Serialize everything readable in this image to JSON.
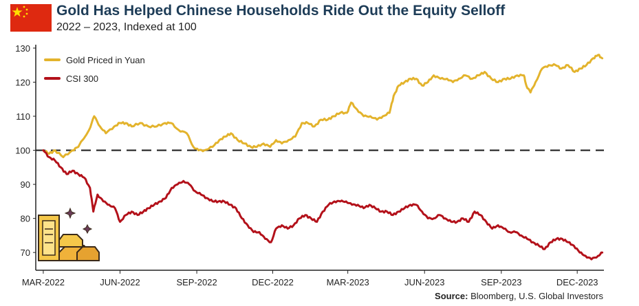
{
  "header": {
    "title": "Gold Has Helped Chinese Households Ride Out the Equity Selloff",
    "subtitle": "2022 – 2023, Indexed at 100"
  },
  "footer": {
    "source_label": "Source:",
    "source_text": "Bloomberg, U.S. Global Investors"
  },
  "colors": {
    "gold": "#e3b32c",
    "csi": "#b3111a",
    "flag_red": "#de2910",
    "flag_star": "#ffde00",
    "title": "#1d3c57"
  },
  "icons": [
    "china-flag-icon",
    "gold-bars-icon"
  ],
  "chart_data": {
    "type": "line",
    "xlabel": "",
    "ylabel": "",
    "ylim": [
      66,
      131
    ],
    "yticks": [
      70,
      80,
      90,
      100,
      110,
      120,
      130
    ],
    "xticks": [
      "MAR-2022",
      "JUN-2022",
      "SEP-2022",
      "DEC-2022",
      "MAR-2023",
      "JUN-2023",
      "SEP-2023",
      "DEC-2023"
    ],
    "reference_line": 100,
    "legend": "top-left",
    "grid": false,
    "series": [
      {
        "name": "Gold Priced in Yuan",
        "points": [
          [
            "2022-03-01",
            100
          ],
          [
            "2022-03-08",
            99
          ],
          [
            "2022-03-15",
            100
          ],
          [
            "2022-03-25",
            98
          ],
          [
            "2022-04-05",
            100
          ],
          [
            "2022-04-12",
            101
          ],
          [
            "2022-04-25",
            106
          ],
          [
            "2022-05-01",
            110
          ],
          [
            "2022-05-08",
            107
          ],
          [
            "2022-05-15",
            105
          ],
          [
            "2022-05-25",
            107
          ],
          [
            "2022-06-01",
            108
          ],
          [
            "2022-06-08",
            108
          ],
          [
            "2022-06-15",
            107
          ],
          [
            "2022-06-25",
            108
          ],
          [
            "2022-07-05",
            107
          ],
          [
            "2022-07-15",
            107
          ],
          [
            "2022-07-25",
            108
          ],
          [
            "2022-08-01",
            108
          ],
          [
            "2022-08-10",
            106
          ],
          [
            "2022-08-20",
            105
          ],
          [
            "2022-08-28",
            101
          ],
          [
            "2022-09-03",
            100
          ],
          [
            "2022-09-10",
            100
          ],
          [
            "2022-09-20",
            101
          ],
          [
            "2022-09-28",
            103
          ],
          [
            "2022-10-05",
            104
          ],
          [
            "2022-10-12",
            105
          ],
          [
            "2022-10-20",
            103
          ],
          [
            "2022-10-28",
            102
          ],
          [
            "2022-11-05",
            101
          ],
          [
            "2022-11-12",
            101
          ],
          [
            "2022-11-20",
            102
          ],
          [
            "2022-11-28",
            101
          ],
          [
            "2022-12-05",
            103
          ],
          [
            "2022-12-12",
            102
          ],
          [
            "2022-12-20",
            103
          ],
          [
            "2022-12-28",
            104
          ],
          [
            "2023-01-05",
            108
          ],
          [
            "2023-01-12",
            108
          ],
          [
            "2023-01-20",
            107
          ],
          [
            "2023-01-28",
            109
          ],
          [
            "2023-02-05",
            109
          ],
          [
            "2023-02-12",
            110
          ],
          [
            "2023-02-20",
            111
          ],
          [
            "2023-02-28",
            111
          ],
          [
            "2023-03-05",
            114
          ],
          [
            "2023-03-12",
            112
          ],
          [
            "2023-03-20",
            110
          ],
          [
            "2023-03-28",
            110
          ],
          [
            "2023-04-05",
            109
          ],
          [
            "2023-04-12",
            110
          ],
          [
            "2023-04-20",
            111
          ],
          [
            "2023-04-25",
            116
          ],
          [
            "2023-05-01",
            119
          ],
          [
            "2023-05-08",
            120
          ],
          [
            "2023-05-15",
            121
          ],
          [
            "2023-05-22",
            121
          ],
          [
            "2023-05-29",
            119
          ],
          [
            "2023-06-05",
            120
          ],
          [
            "2023-06-12",
            122
          ],
          [
            "2023-06-20",
            121
          ],
          [
            "2023-06-28",
            121
          ],
          [
            "2023-07-05",
            120
          ],
          [
            "2023-07-12",
            121
          ],
          [
            "2023-07-20",
            122
          ],
          [
            "2023-07-28",
            121
          ],
          [
            "2023-08-05",
            122
          ],
          [
            "2023-08-12",
            123
          ],
          [
            "2023-08-20",
            121
          ],
          [
            "2023-08-28",
            120
          ],
          [
            "2023-09-05",
            121
          ],
          [
            "2023-09-12",
            121
          ],
          [
            "2023-09-20",
            122
          ],
          [
            "2023-09-28",
            122
          ],
          [
            "2023-10-01",
            119
          ],
          [
            "2023-10-06",
            117
          ],
          [
            "2023-10-12",
            120
          ],
          [
            "2023-10-20",
            124
          ],
          [
            "2023-10-28",
            125
          ],
          [
            "2023-11-05",
            125
          ],
          [
            "2023-11-12",
            124
          ],
          [
            "2023-11-20",
            125
          ],
          [
            "2023-11-28",
            123
          ],
          [
            "2023-12-05",
            124
          ],
          [
            "2023-12-12",
            125
          ],
          [
            "2023-12-20",
            127
          ],
          [
            "2023-12-26",
            128
          ],
          [
            "2023-12-31",
            127
          ]
        ]
      },
      {
        "name": "CSI 300",
        "points": [
          [
            "2022-03-01",
            100
          ],
          [
            "2022-03-08",
            98
          ],
          [
            "2022-03-15",
            97
          ],
          [
            "2022-03-22",
            95
          ],
          [
            "2022-03-29",
            93
          ],
          [
            "2022-04-05",
            94
          ],
          [
            "2022-04-12",
            93
          ],
          [
            "2022-04-19",
            92
          ],
          [
            "2022-04-26",
            89
          ],
          [
            "2022-04-30",
            82
          ],
          [
            "2022-05-05",
            87
          ],
          [
            "2022-05-12",
            85
          ],
          [
            "2022-05-19",
            84
          ],
          [
            "2022-05-26",
            83
          ],
          [
            "2022-06-01",
            79
          ],
          [
            "2022-06-08",
            81
          ],
          [
            "2022-06-15",
            82
          ],
          [
            "2022-06-22",
            81
          ],
          [
            "2022-06-29",
            82
          ],
          [
            "2022-07-05",
            83
          ],
          [
            "2022-07-12",
            84
          ],
          [
            "2022-07-19",
            85
          ],
          [
            "2022-07-26",
            86
          ],
          [
            "2022-08-02",
            89
          ],
          [
            "2022-08-09",
            90
          ],
          [
            "2022-08-16",
            91
          ],
          [
            "2022-08-23",
            90
          ],
          [
            "2022-08-30",
            88
          ],
          [
            "2022-09-06",
            87
          ],
          [
            "2022-09-13",
            86
          ],
          [
            "2022-09-20",
            85
          ],
          [
            "2022-09-27",
            85
          ],
          [
            "2022-10-04",
            85
          ],
          [
            "2022-10-11",
            84
          ],
          [
            "2022-10-18",
            83
          ],
          [
            "2022-10-25",
            80
          ],
          [
            "2022-11-01",
            78
          ],
          [
            "2022-11-08",
            76
          ],
          [
            "2022-11-15",
            76
          ],
          [
            "2022-11-22",
            74
          ],
          [
            "2022-11-29",
            73
          ],
          [
            "2022-12-05",
            77
          ],
          [
            "2022-12-12",
            78
          ],
          [
            "2022-12-19",
            77
          ],
          [
            "2022-12-26",
            78
          ],
          [
            "2023-01-02",
            80
          ],
          [
            "2023-01-09",
            81
          ],
          [
            "2023-01-16",
            80
          ],
          [
            "2023-01-23",
            79
          ],
          [
            "2023-01-30",
            82
          ],
          [
            "2023-02-06",
            84
          ],
          [
            "2023-02-13",
            85
          ],
          [
            "2023-02-20",
            85
          ],
          [
            "2023-02-27",
            85
          ],
          [
            "2023-03-06",
            84
          ],
          [
            "2023-03-13",
            84
          ],
          [
            "2023-03-20",
            83
          ],
          [
            "2023-03-27",
            84
          ],
          [
            "2023-04-03",
            83
          ],
          [
            "2023-04-10",
            82
          ],
          [
            "2023-04-17",
            82
          ],
          [
            "2023-04-24",
            81
          ],
          [
            "2023-05-01",
            82
          ],
          [
            "2023-05-08",
            83
          ],
          [
            "2023-05-15",
            84
          ],
          [
            "2023-05-22",
            84
          ],
          [
            "2023-05-29",
            82
          ],
          [
            "2023-06-05",
            80
          ],
          [
            "2023-06-12",
            80
          ],
          [
            "2023-06-19",
            81
          ],
          [
            "2023-06-26",
            80
          ],
          [
            "2023-07-03",
            79
          ],
          [
            "2023-07-10",
            79
          ],
          [
            "2023-07-17",
            80
          ],
          [
            "2023-07-24",
            79
          ],
          [
            "2023-07-31",
            82
          ],
          [
            "2023-08-07",
            81
          ],
          [
            "2023-08-14",
            79
          ],
          [
            "2023-08-21",
            77
          ],
          [
            "2023-08-28",
            78
          ],
          [
            "2023-09-04",
            77
          ],
          [
            "2023-09-11",
            76
          ],
          [
            "2023-09-18",
            76
          ],
          [
            "2023-09-25",
            75
          ],
          [
            "2023-10-02",
            74
          ],
          [
            "2023-10-09",
            73
          ],
          [
            "2023-10-16",
            72
          ],
          [
            "2023-10-23",
            71
          ],
          [
            "2023-10-30",
            73
          ],
          [
            "2023-11-06",
            74
          ],
          [
            "2023-11-13",
            74
          ],
          [
            "2023-11-20",
            73
          ],
          [
            "2023-11-27",
            72
          ],
          [
            "2023-12-04",
            70
          ],
          [
            "2023-12-11",
            69
          ],
          [
            "2023-12-18",
            68
          ],
          [
            "2023-12-26",
            69
          ],
          [
            "2023-12-31",
            70
          ]
        ]
      }
    ]
  }
}
